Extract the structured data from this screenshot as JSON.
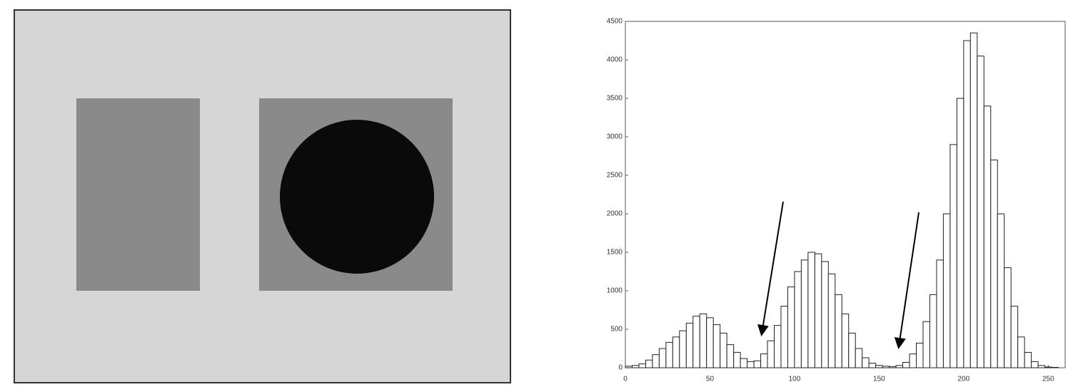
{
  "chart_data": {
    "type": "histogram",
    "bins": [
      0,
      4,
      8,
      12,
      16,
      20,
      24,
      28,
      32,
      36,
      40,
      44,
      48,
      52,
      56,
      60,
      64,
      68,
      72,
      76,
      80,
      84,
      88,
      92,
      96,
      100,
      104,
      108,
      112,
      116,
      120,
      124,
      128,
      132,
      136,
      140,
      144,
      148,
      152,
      156,
      160,
      164,
      168,
      172,
      176,
      180,
      184,
      188,
      192,
      196,
      200,
      204,
      208,
      212,
      216,
      220,
      224,
      228,
      232,
      236,
      240,
      244,
      248,
      252,
      256
    ],
    "counts": [
      20,
      30,
      50,
      100,
      170,
      250,
      330,
      400,
      480,
      580,
      670,
      700,
      650,
      560,
      450,
      300,
      200,
      120,
      80,
      90,
      180,
      350,
      550,
      800,
      1050,
      1250,
      1400,
      1500,
      1480,
      1380,
      1220,
      950,
      700,
      450,
      250,
      130,
      60,
      30,
      20,
      15,
      30,
      70,
      180,
      320,
      600,
      950,
      1400,
      2000,
      2900,
      3500,
      4250,
      4350,
      4050,
      3400,
      2700,
      2000,
      1300,
      800,
      400,
      200,
      80,
      30,
      10,
      5
    ],
    "color": "#ffffff",
    "xlim": [
      0,
      260
    ],
    "xticks": [
      0,
      50,
      100,
      150,
      200,
      250
    ],
    "ylim": [
      0,
      4500
    ],
    "yticks": [
      0,
      500,
      1000,
      1500,
      2000,
      2500,
      3000,
      3500,
      4000,
      4500
    ]
  }
}
